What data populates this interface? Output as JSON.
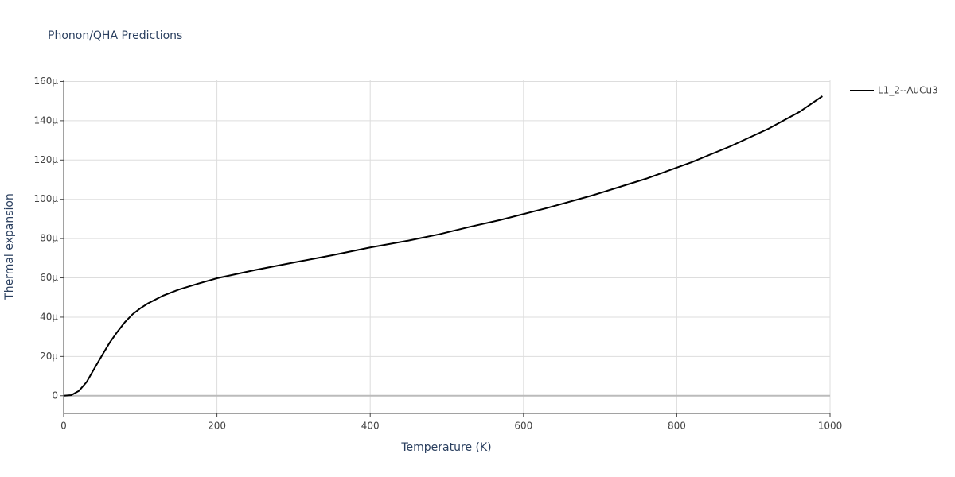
{
  "chart_data": {
    "type": "line",
    "title": "Phonon/QHA Predictions",
    "x_label": "Temperature (K)",
    "y_label": "Thermal expansion",
    "x": [
      0,
      10,
      20,
      30,
      40,
      50,
      60,
      70,
      80,
      90,
      100,
      110,
      130,
      150,
      175,
      200,
      250,
      300,
      350,
      400,
      450,
      490,
      530,
      570,
      630,
      690,
      760,
      820,
      870,
      920,
      960,
      990
    ],
    "series": [
      {
        "name": "L1_2--AuCu3",
        "color": "#000000",
        "values": [
          0,
          3e-07,
          2.5e-06,
          7e-06,
          1.38e-05,
          2.05e-05,
          2.7e-05,
          3.25e-05,
          3.75e-05,
          4.15e-05,
          4.45e-05,
          4.7e-05,
          5.1e-05,
          5.4e-05,
          5.7e-05,
          5.98e-05,
          6.4e-05,
          6.78e-05,
          7.15e-05,
          7.55e-05,
          7.9e-05,
          8.22e-05,
          8.6e-05,
          8.95e-05,
          9.55e-05,
          0.000102,
          0.0001105,
          0.000119,
          0.000127,
          0.000136,
          0.0001445,
          0.0001525
        ]
      }
    ],
    "xlim": [
      0,
      1000
    ],
    "xticks": [
      0,
      200,
      400,
      600,
      800,
      1000
    ],
    "ylim": [
      -9e-06,
      0.000161
    ],
    "yticks": [
      0,
      {
        "value": 2e-05,
        "label": "20μ"
      },
      {
        "value": 4e-05,
        "label": "40μ"
      },
      {
        "value": 6e-05,
        "label": "60μ"
      },
      {
        "value": 8e-05,
        "label": "80μ"
      },
      {
        "value": 0.0001,
        "label": "100μ"
      },
      {
        "value": 0.00012,
        "label": "120μ"
      },
      {
        "value": 0.00014,
        "label": "140μ"
      },
      {
        "value": 0.00016,
        "label": "160μ"
      }
    ],
    "grid": true,
    "legend": "right"
  }
}
